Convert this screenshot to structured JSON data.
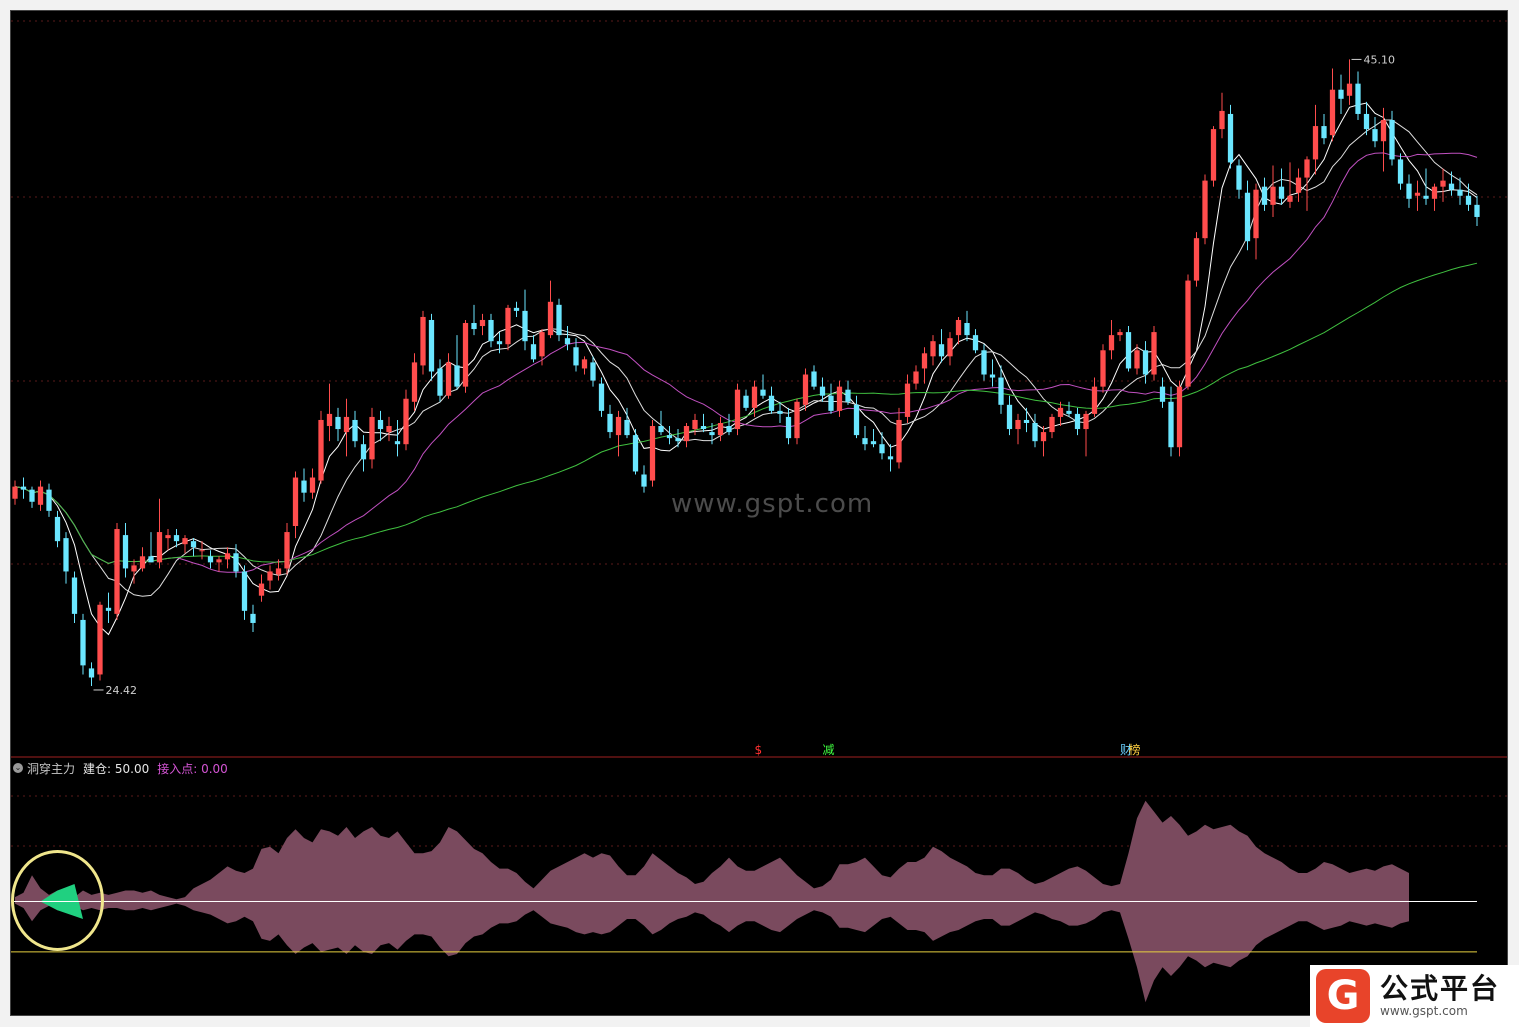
{
  "indicator": {
    "name": "洞穿主力",
    "fields": [
      {
        "label": "建仓: 50.00",
        "color": "#e6e6e6"
      },
      {
        "label": "接入点: 0.00",
        "color": "#d454d4"
      }
    ]
  },
  "annotations": {
    "high_label": "45.10",
    "low_label": "24.42",
    "markers": [
      {
        "text": "$",
        "color": "#ff3030",
        "idx": 87
      },
      {
        "text": "减",
        "color": "#40ff40",
        "idx": 95
      },
      {
        "text": "财",
        "color": "#6ad0ff",
        "idx": 130
      },
      {
        "text": "榜",
        "color": "#ffd040",
        "idx": 131
      }
    ]
  },
  "watermark": "www.gspt.com",
  "brand": {
    "name": "公式平台",
    "url": "www.gspt.com",
    "logo_letter": "G"
  },
  "colors": {
    "up": "#ff4d4d",
    "down": "#6be6ff",
    "ma_short": "#ffffff",
    "ma_mid": "#ffffff",
    "ma_long": "#c050c0",
    "ma_longest": "#40c040",
    "band": "#7a4a5e",
    "band_green": "#20d080",
    "line_white": "#ffffff",
    "line_yellow": "#e6d040",
    "highlight_circle": "#f0e68c"
  },
  "chart_data": {
    "type": "candlestick",
    "ylim": [
      23.0,
      46.5
    ],
    "candles": [
      [
        30.6,
        31.2,
        30.4,
        31.0
      ],
      [
        31.0,
        31.3,
        30.6,
        30.9
      ],
      [
        30.9,
        31.0,
        30.3,
        30.5
      ],
      [
        30.4,
        31.2,
        30.2,
        31.0
      ],
      [
        30.9,
        31.1,
        30.0,
        30.2
      ],
      [
        30.0,
        30.2,
        29.0,
        29.2
      ],
      [
        29.3,
        29.5,
        27.8,
        28.2
      ],
      [
        28.0,
        28.2,
        26.5,
        26.8
      ],
      [
        26.6,
        26.8,
        24.8,
        25.1
      ],
      [
        25.0,
        25.2,
        24.42,
        24.7
      ],
      [
        24.8,
        27.2,
        24.6,
        27.1
      ],
      [
        27.0,
        27.5,
        26.5,
        26.9
      ],
      [
        26.8,
        29.8,
        26.6,
        29.6
      ],
      [
        29.4,
        29.8,
        28.0,
        28.3
      ],
      [
        28.2,
        28.6,
        27.8,
        28.4
      ],
      [
        28.3,
        29.0,
        28.2,
        28.7
      ],
      [
        28.7,
        29.5,
        28.5,
        28.5
      ],
      [
        28.5,
        30.6,
        28.3,
        29.5
      ],
      [
        29.3,
        29.6,
        28.9,
        29.4
      ],
      [
        29.4,
        29.6,
        29.0,
        29.2
      ],
      [
        29.1,
        29.4,
        28.8,
        29.3
      ],
      [
        29.2,
        29.3,
        28.7,
        29.0
      ],
      [
        28.9,
        29.2,
        28.6,
        28.9
      ],
      [
        28.7,
        28.9,
        28.3,
        28.5
      ],
      [
        28.5,
        28.7,
        28.2,
        28.6
      ],
      [
        28.6,
        29.0,
        28.3,
        28.8
      ],
      [
        28.8,
        29.1,
        28.0,
        28.2
      ],
      [
        28.2,
        28.4,
        26.6,
        26.9
      ],
      [
        26.8,
        27.1,
        26.2,
        26.5
      ],
      [
        27.4,
        28.1,
        27.2,
        27.8
      ],
      [
        27.9,
        28.4,
        27.6,
        28.2
      ],
      [
        28.1,
        28.6,
        27.9,
        28.3
      ],
      [
        28.3,
        29.8,
        28.1,
        29.5
      ],
      [
        29.7,
        31.5,
        29.3,
        31.3
      ],
      [
        31.2,
        31.6,
        30.5,
        30.8
      ],
      [
        30.8,
        31.6,
        30.6,
        31.3
      ],
      [
        31.2,
        33.5,
        31.1,
        33.2
      ],
      [
        33.0,
        34.4,
        32.5,
        33.4
      ],
      [
        33.3,
        33.6,
        32.5,
        32.9
      ],
      [
        32.8,
        33.9,
        32.0,
        33.3
      ],
      [
        33.2,
        33.5,
        32.3,
        32.5
      ],
      [
        32.4,
        32.7,
        31.5,
        31.9
      ],
      [
        31.9,
        33.6,
        31.6,
        33.3
      ],
      [
        33.2,
        33.5,
        32.5,
        32.9
      ],
      [
        32.8,
        33.3,
        32.5,
        33.0
      ],
      [
        32.5,
        33.2,
        32.0,
        32.4
      ],
      [
        32.4,
        34.2,
        32.2,
        33.9
      ],
      [
        33.8,
        35.4,
        33.5,
        35.1
      ],
      [
        35.0,
        36.8,
        34.7,
        36.6
      ],
      [
        36.5,
        36.7,
        34.5,
        34.8
      ],
      [
        34.9,
        35.2,
        33.8,
        34.0
      ],
      [
        34.0,
        35.4,
        33.9,
        35.1
      ],
      [
        35.0,
        36.0,
        34.2,
        34.3
      ],
      [
        34.3,
        36.5,
        34.1,
        36.4
      ],
      [
        36.4,
        37.0,
        36.0,
        36.2
      ],
      [
        36.3,
        36.7,
        36.0,
        36.5
      ],
      [
        36.5,
        36.7,
        35.6,
        35.8
      ],
      [
        35.8,
        36.1,
        35.4,
        35.7
      ],
      [
        35.7,
        37.0,
        35.5,
        36.9
      ],
      [
        36.9,
        37.1,
        36.6,
        36.8
      ],
      [
        36.8,
        37.5,
        35.5,
        35.8
      ],
      [
        35.7,
        36.0,
        35.1,
        35.2
      ],
      [
        35.3,
        36.2,
        35.0,
        36.1
      ],
      [
        36.0,
        37.8,
        35.9,
        37.1
      ],
      [
        37.0,
        37.2,
        35.8,
        36.0
      ],
      [
        35.9,
        36.3,
        35.5,
        35.7
      ],
      [
        35.6,
        35.9,
        34.8,
        35.0
      ],
      [
        34.9,
        35.3,
        34.7,
        35.2
      ],
      [
        35.1,
        35.3,
        34.3,
        34.5
      ],
      [
        34.4,
        34.6,
        33.3,
        33.5
      ],
      [
        33.4,
        33.7,
        32.6,
        32.8
      ],
      [
        32.7,
        33.5,
        32.0,
        33.3
      ],
      [
        33.2,
        33.6,
        32.6,
        32.7
      ],
      [
        32.7,
        32.9,
        31.4,
        31.5
      ],
      [
        31.4,
        31.7,
        30.8,
        31.0
      ],
      [
        31.2,
        33.2,
        31.0,
        33.0
      ],
      [
        33.0,
        33.5,
        32.7,
        32.8
      ],
      [
        32.7,
        33.0,
        32.4,
        32.6
      ],
      [
        32.6,
        32.9,
        32.3,
        32.5
      ],
      [
        32.5,
        33.1,
        32.3,
        33.0
      ],
      [
        32.9,
        33.4,
        32.7,
        33.2
      ],
      [
        33.0,
        33.4,
        32.8,
        32.9
      ],
      [
        32.8,
        33.1,
        32.4,
        32.7
      ],
      [
        32.7,
        33.3,
        32.5,
        33.1
      ],
      [
        33.0,
        33.4,
        32.7,
        32.8
      ],
      [
        32.9,
        34.4,
        32.7,
        34.2
      ],
      [
        34.0,
        34.2,
        33.5,
        33.6
      ],
      [
        33.6,
        34.5,
        33.3,
        34.3
      ],
      [
        34.2,
        34.7,
        33.9,
        34.0
      ],
      [
        34.0,
        34.3,
        33.4,
        33.5
      ],
      [
        33.5,
        33.8,
        33.1,
        33.4
      ],
      [
        33.3,
        33.6,
        32.4,
        32.6
      ],
      [
        32.6,
        33.9,
        32.4,
        33.8
      ],
      [
        33.7,
        34.9,
        33.5,
        34.7
      ],
      [
        34.8,
        35.0,
        34.2,
        34.3
      ],
      [
        34.3,
        34.6,
        33.8,
        34.0
      ],
      [
        34.0,
        34.4,
        33.4,
        33.5
      ],
      [
        33.5,
        34.5,
        33.3,
        34.3
      ],
      [
        34.2,
        34.5,
        33.7,
        33.8
      ],
      [
        33.7,
        34.0,
        32.6,
        32.7
      ],
      [
        32.6,
        33.0,
        32.2,
        32.4
      ],
      [
        32.5,
        32.9,
        32.3,
        32.4
      ],
      [
        32.4,
        32.8,
        31.9,
        32.1
      ],
      [
        32.0,
        32.4,
        31.5,
        31.9
      ],
      [
        31.8,
        33.6,
        31.6,
        33.2
      ],
      [
        33.3,
        34.7,
        33.1,
        34.4
      ],
      [
        34.4,
        35.0,
        34.2,
        34.8
      ],
      [
        34.9,
        35.6,
        34.4,
        35.4
      ],
      [
        35.3,
        36.0,
        35.0,
        35.8
      ],
      [
        35.7,
        36.2,
        35.1,
        35.3
      ],
      [
        35.3,
        36.1,
        35.0,
        35.9
      ],
      [
        36.0,
        36.6,
        35.7,
        36.5
      ],
      [
        36.4,
        36.8,
        35.8,
        36.0
      ],
      [
        36.0,
        36.2,
        35.4,
        35.5
      ],
      [
        35.5,
        35.7,
        34.5,
        34.7
      ],
      [
        34.7,
        35.2,
        34.3,
        34.6
      ],
      [
        34.6,
        35.0,
        33.4,
        33.7
      ],
      [
        33.7,
        34.0,
        32.7,
        32.9
      ],
      [
        32.9,
        33.4,
        32.4,
        33.2
      ],
      [
        33.2,
        33.6,
        32.8,
        33.1
      ],
      [
        33.1,
        33.4,
        32.3,
        32.5
      ],
      [
        32.5,
        33.0,
        32.0,
        32.8
      ],
      [
        32.8,
        33.4,
        32.6,
        33.3
      ],
      [
        33.3,
        33.8,
        33.0,
        33.6
      ],
      [
        33.5,
        33.8,
        33.3,
        33.4
      ],
      [
        33.4,
        33.6,
        32.7,
        32.9
      ],
      [
        32.9,
        33.5,
        32.0,
        33.4
      ],
      [
        33.4,
        34.6,
        33.3,
        34.3
      ],
      [
        34.3,
        35.7,
        34.1,
        35.5
      ],
      [
        35.5,
        36.5,
        35.2,
        36.0
      ],
      [
        36.0,
        36.2,
        35.8,
        36.1
      ],
      [
        36.1,
        36.3,
        34.8,
        34.9
      ],
      [
        34.9,
        35.7,
        34.7,
        35.5
      ],
      [
        35.5,
        35.8,
        34.4,
        34.7
      ],
      [
        34.7,
        36.3,
        34.5,
        36.1
      ],
      [
        34.3,
        34.6,
        33.6,
        33.8
      ],
      [
        33.8,
        34.3,
        32.0,
        32.3
      ],
      [
        32.3,
        34.5,
        32.0,
        34.3
      ],
      [
        34.3,
        38.0,
        34.2,
        37.8
      ],
      [
        37.8,
        39.4,
        37.6,
        39.2
      ],
      [
        39.2,
        41.3,
        39.0,
        41.1
      ],
      [
        41.1,
        42.9,
        40.9,
        42.8
      ],
      [
        42.8,
        44.0,
        42.5,
        43.4
      ],
      [
        43.3,
        43.6,
        41.5,
        41.7
      ],
      [
        41.6,
        41.8,
        40.5,
        40.8
      ],
      [
        40.7,
        41.1,
        38.8,
        39.1
      ],
      [
        39.2,
        41.0,
        38.5,
        40.8
      ],
      [
        40.9,
        41.2,
        40.1,
        40.3
      ],
      [
        40.3,
        41.6,
        39.9,
        40.9
      ],
      [
        40.9,
        41.5,
        40.3,
        40.5
      ],
      [
        40.4,
        41.7,
        40.2,
        40.6
      ],
      [
        40.7,
        41.5,
        40.4,
        41.2
      ],
      [
        41.2,
        41.9,
        40.1,
        41.8
      ],
      [
        41.8,
        43.6,
        41.3,
        42.9
      ],
      [
        42.9,
        43.3,
        42.3,
        42.5
      ],
      [
        42.6,
        44.8,
        42.4,
        44.1
      ],
      [
        44.1,
        44.6,
        43.3,
        43.8
      ],
      [
        43.9,
        45.1,
        43.6,
        44.3
      ],
      [
        44.3,
        44.7,
        43.1,
        43.3
      ],
      [
        43.3,
        43.7,
        42.6,
        42.8
      ],
      [
        42.8,
        43.2,
        42.2,
        42.4
      ],
      [
        42.4,
        43.5,
        41.4,
        43.1
      ],
      [
        43.1,
        43.4,
        41.6,
        41.8
      ],
      [
        41.8,
        42.0,
        40.8,
        41.0
      ],
      [
        41.0,
        41.3,
        40.2,
        40.5
      ],
      [
        40.6,
        41.1,
        40.1,
        40.7
      ],
      [
        40.6,
        41.5,
        40.3,
        40.5
      ],
      [
        40.5,
        41.0,
        40.1,
        40.9
      ],
      [
        40.9,
        41.5,
        40.4,
        41.1
      ],
      [
        41.0,
        41.4,
        40.6,
        40.8
      ],
      [
        40.8,
        41.2,
        40.3,
        40.6
      ],
      [
        40.6,
        41.0,
        40.1,
        40.3
      ],
      [
        40.3,
        40.6,
        39.6,
        39.9
      ]
    ],
    "indicator_series": {
      "name": "洞穿主力",
      "ylim": [
        -5.0,
        5.5
      ],
      "upper": [
        0.2,
        0.4,
        1.2,
        0.6,
        0.3,
        0.5,
        0.3,
        0.2,
        0.5,
        0.3,
        0.4,
        0.3,
        0.4,
        0.5,
        0.5,
        0.4,
        0.5,
        0.3,
        0.2,
        0.1,
        0.2,
        0.6,
        0.8,
        1.0,
        1.3,
        1.6,
        1.4,
        1.3,
        1.5,
        2.4,
        2.5,
        2.2,
        2.9,
        3.3,
        2.9,
        2.7,
        3.3,
        3.2,
        3.0,
        3.4,
        2.9,
        3.2,
        3.4,
        3.0,
        2.9,
        3.2,
        2.7,
        2.2,
        2.2,
        2.3,
        2.7,
        3.4,
        3.2,
        2.8,
        2.4,
        2.2,
        1.8,
        1.5,
        1.5,
        1.3,
        0.9,
        0.6,
        1.0,
        1.4,
        1.6,
        1.8,
        2.0,
        2.2,
        2.0,
        2.2,
        2.1,
        1.6,
        1.2,
        1.2,
        1.6,
        2.2,
        1.9,
        1.6,
        1.3,
        1.1,
        0.8,
        0.9,
        1.3,
        1.6,
        2.0,
        1.6,
        1.4,
        1.4,
        1.6,
        1.8,
        2.0,
        1.6,
        1.2,
        0.9,
        0.6,
        0.7,
        1.0,
        1.7,
        1.7,
        1.8,
        2.0,
        1.6,
        1.2,
        1.1,
        1.5,
        1.8,
        1.8,
        2.0,
        2.5,
        2.3,
        2.0,
        1.8,
        1.6,
        1.3,
        1.2,
        1.2,
        1.5,
        1.5,
        1.3,
        1.0,
        0.8,
        0.9,
        1.1,
        1.3,
        1.5,
        1.6,
        1.4,
        1.1,
        0.8,
        0.7,
        0.8,
        2.2,
        3.8,
        4.6,
        4.1,
        3.6,
        3.9,
        3.5,
        3.0,
        3.2,
        3.5,
        3.3,
        3.4,
        3.5,
        3.2,
        3.0,
        2.5,
        2.2,
        2.0,
        1.8,
        1.5,
        1.3,
        1.3,
        1.5,
        1.8,
        1.7,
        1.5,
        1.3,
        1.4,
        1.5,
        1.4,
        1.6,
        1.7,
        1.5,
        1.3
      ],
      "lower": [
        -0.1,
        -0.3,
        -0.9,
        -0.4,
        -0.2,
        -0.4,
        -0.3,
        -0.2,
        -0.4,
        -0.3,
        -0.4,
        -0.3,
        -0.3,
        -0.4,
        -0.4,
        -0.3,
        -0.4,
        -0.3,
        -0.2,
        -0.1,
        -0.2,
        -0.4,
        -0.5,
        -0.6,
        -0.8,
        -1.0,
        -0.9,
        -0.7,
        -0.9,
        -1.7,
        -1.8,
        -1.5,
        -2.0,
        -2.4,
        -2.1,
        -1.9,
        -2.3,
        -2.2,
        -2.1,
        -2.4,
        -2.0,
        -2.3,
        -2.4,
        -2.0,
        -1.9,
        -2.2,
        -1.8,
        -1.5,
        -1.5,
        -1.6,
        -2.1,
        -2.5,
        -2.4,
        -1.9,
        -1.6,
        -1.5,
        -1.2,
        -1.0,
        -1.0,
        -0.9,
        -0.6,
        -0.4,
        -0.7,
        -1.0,
        -1.1,
        -1.2,
        -1.4,
        -1.5,
        -1.4,
        -1.5,
        -1.4,
        -1.1,
        -0.8,
        -0.8,
        -1.1,
        -1.5,
        -1.3,
        -1.0,
        -0.8,
        -0.7,
        -0.5,
        -0.6,
        -0.9,
        -1.1,
        -1.4,
        -1.1,
        -0.9,
        -0.9,
        -1.1,
        -1.3,
        -1.4,
        -1.1,
        -0.8,
        -0.6,
        -0.4,
        -0.5,
        -0.7,
        -1.2,
        -1.2,
        -1.3,
        -1.4,
        -1.1,
        -0.8,
        -0.7,
        -1.0,
        -1.3,
        -1.3,
        -1.4,
        -1.8,
        -1.6,
        -1.4,
        -1.3,
        -1.1,
        -0.9,
        -0.8,
        -0.8,
        -1.1,
        -1.1,
        -0.9,
        -0.7,
        -0.5,
        -0.6,
        -0.8,
        -0.9,
        -1.1,
        -1.1,
        -1.0,
        -0.8,
        -0.5,
        -0.4,
        -0.5,
        -1.7,
        -3.0,
        -4.6,
        -3.6,
        -3.0,
        -3.4,
        -3.0,
        -2.5,
        -2.7,
        -3.0,
        -2.8,
        -2.9,
        -3.0,
        -2.7,
        -2.5,
        -2.0,
        -1.7,
        -1.5,
        -1.3,
        -1.1,
        -0.9,
        -0.9,
        -1.1,
        -1.3,
        -1.2,
        -1.1,
        -0.9,
        -1.0,
        -1.1,
        -1.0,
        -1.1,
        -1.2,
        -1.0,
        -0.9
      ],
      "green_region": [
        3,
        8
      ],
      "white_level": 0,
      "yellow_level": -2.3
    }
  }
}
